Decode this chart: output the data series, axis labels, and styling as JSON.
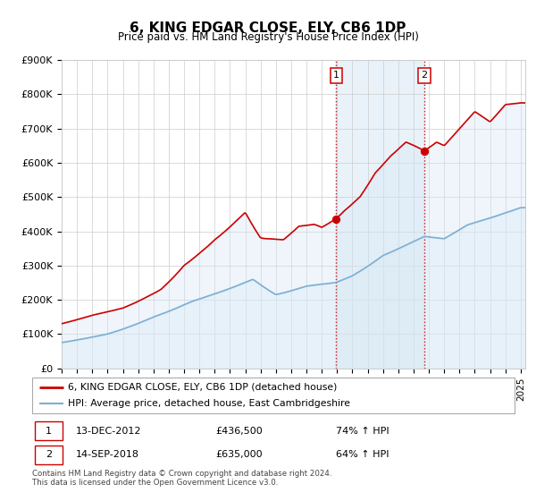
{
  "title": "6, KING EDGAR CLOSE, ELY, CB6 1DP",
  "subtitle": "Price paid vs. HM Land Registry's House Price Index (HPI)",
  "legend_label1": "6, KING EDGAR CLOSE, ELY, CB6 1DP (detached house)",
  "legend_label2": "HPI: Average price, detached house, East Cambridgeshire",
  "annotation1_text1": "13-DEC-2012",
  "annotation1_text2": "£436,500",
  "annotation1_text3": "74% ↑ HPI",
  "annotation2_text1": "14-SEP-2018",
  "annotation2_text2": "£635,000",
  "annotation2_text3": "64% ↑ HPI",
  "footer1": "Contains HM Land Registry data © Crown copyright and database right 2024.",
  "footer2": "This data is licensed under the Open Government Licence v3.0.",
  "sale1_price": 436500,
  "sale1_year": 2012.95,
  "sale2_price": 635000,
  "sale2_year": 2018.71,
  "red_color": "#cc0000",
  "blue_color": "#7bafd4",
  "fill_color": "#d8e8f5",
  "grid_color": "#cccccc",
  "ylim_max": 900000,
  "ylim_min": 0,
  "xlim_min": 1995,
  "xlim_max": 2025.3
}
